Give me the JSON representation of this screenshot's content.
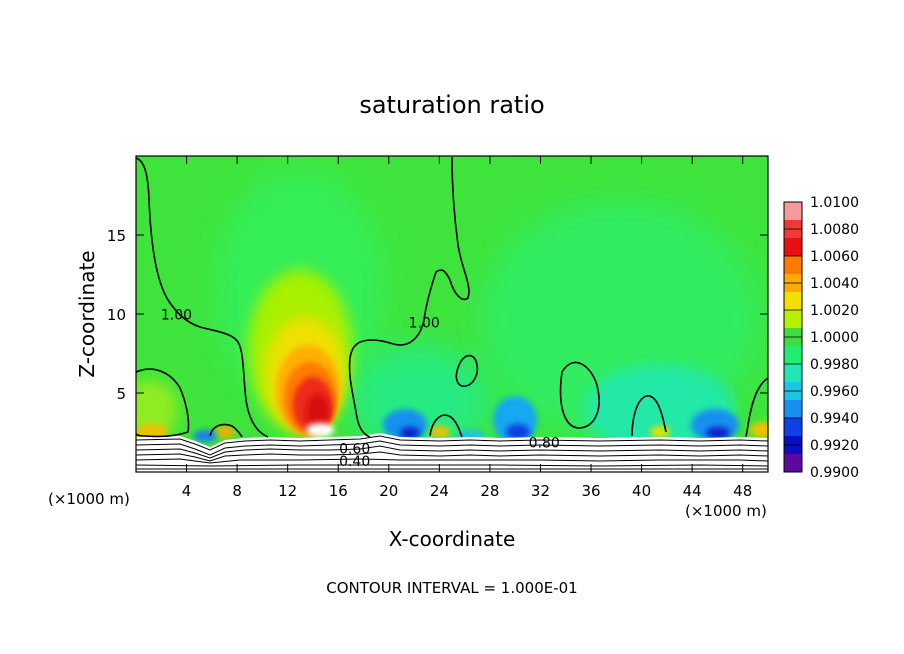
{
  "chart_data": {
    "type": "heatmap",
    "title": "saturation ratio",
    "xlabel": "X-coordinate",
    "ylabel": "Z-coordinate",
    "x_unit": "(×1000 m)",
    "y_unit": "(×1000 m)",
    "footer": "CONTOUR INTERVAL = 1.000E-01",
    "xlim": [
      0,
      50
    ],
    "ylim": [
      0,
      20
    ],
    "x_ticks": [
      4,
      8,
      12,
      16,
      20,
      24,
      28,
      32,
      36,
      40,
      44,
      48
    ],
    "y_ticks": [
      5,
      10,
      15
    ],
    "colorbar": {
      "min": 0.99,
      "max": 1.01,
      "labels": [
        "1.0100",
        "1.0080",
        "1.0060",
        "1.0040",
        "1.0020",
        "1.0000",
        "0.9980",
        "0.9960",
        "0.9940",
        "0.9920",
        "0.9900"
      ],
      "colors": [
        "#f59a9a",
        "#ef3a3a",
        "#e81010",
        "#ff7a00",
        "#ffaa00",
        "#f2e000",
        "#b8f000",
        "#40dc40",
        "#20ee70",
        "#20e8b0",
        "#18c8e0",
        "#1890f0",
        "#1040e8",
        "#0a10c0",
        "#5a0aa0"
      ]
    },
    "contour_labels": [
      {
        "text": "1.00",
        "x": 3.2,
        "z": 9.7
      },
      {
        "text": "1.00",
        "x": 22.8,
        "z": 9.2
      },
      {
        "text": "0.60",
        "x": 17.3,
        "z": 1.25
      },
      {
        "text": "0.80",
        "x": 32.3,
        "z": 1.6
      },
      {
        "text": "0.40",
        "x": 17.3,
        "z": 0.45
      }
    ]
  }
}
